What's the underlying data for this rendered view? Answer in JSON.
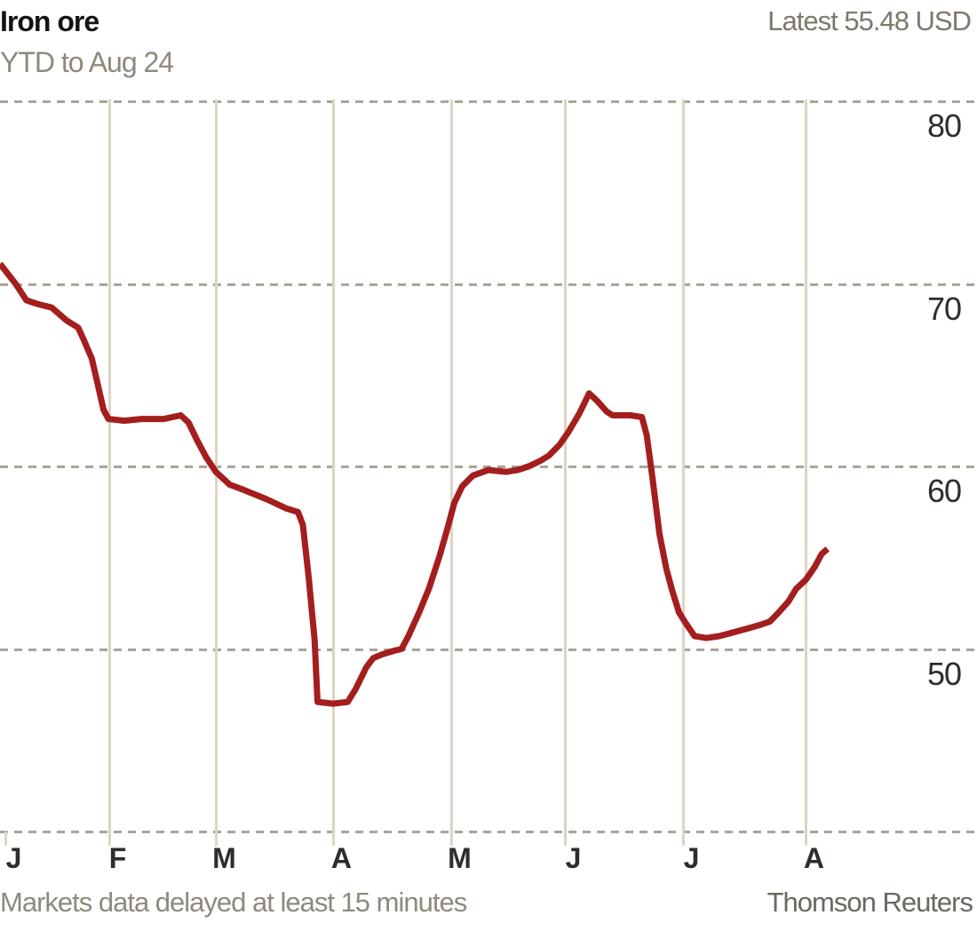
{
  "header": {
    "title": "Iron ore",
    "subtitle": "YTD to Aug 24",
    "latest": "Latest 55.48 USD"
  },
  "footer": {
    "disclaimer": "Markets data delayed at least 15 minutes",
    "source": "Thomson Reuters"
  },
  "colors": {
    "line": "#a41e1e",
    "grid_vertical": "#ddd4c3",
    "grid_dashed": "#aaa49a",
    "title_text": "#141414",
    "muted_text": "#8f897c",
    "axis_text": "#2f2d28"
  },
  "chart_data": {
    "type": "line",
    "title": "Iron ore",
    "subtitle": "YTD to Aug 24",
    "unit": "USD",
    "latest_value": 55.48,
    "period_end": "Aug 24",
    "ylim": [
      40,
      80
    ],
    "y_tick_labels": [
      80,
      70,
      60,
      50
    ],
    "y_gridlines": [
      80,
      70,
      60,
      50,
      40
    ],
    "grid": "on",
    "legend": "none",
    "x_months": [
      {
        "label": "J",
        "f": 0.0055,
        "full_line": false
      },
      {
        "label": "F",
        "f": 0.1118,
        "full_line": true
      },
      {
        "label": "M",
        "f": 0.2209,
        "full_line": true
      },
      {
        "label": "A",
        "f": 0.3409,
        "full_line": true
      },
      {
        "label": "M",
        "f": 0.4618,
        "full_line": true
      },
      {
        "label": "J",
        "f": 0.5782,
        "full_line": true
      },
      {
        "label": "J",
        "f": 0.6991,
        "full_line": true
      },
      {
        "label": "A",
        "f": 0.8245,
        "full_line": true
      }
    ],
    "series": [
      {
        "name": "Iron ore price (USD)",
        "points": [
          [
            0.0,
            71.1
          ],
          [
            0.016,
            70.0
          ],
          [
            0.027,
            69.1
          ],
          [
            0.038,
            68.9
          ],
          [
            0.053,
            68.7
          ],
          [
            0.068,
            68.0
          ],
          [
            0.08,
            67.6
          ],
          [
            0.086,
            66.9
          ],
          [
            0.094,
            65.9
          ],
          [
            0.1,
            64.5
          ],
          [
            0.106,
            63.1
          ],
          [
            0.111,
            62.6
          ],
          [
            0.127,
            62.5
          ],
          [
            0.145,
            62.6
          ],
          [
            0.168,
            62.6
          ],
          [
            0.185,
            62.8
          ],
          [
            0.193,
            62.4
          ],
          [
            0.202,
            61.4
          ],
          [
            0.211,
            60.5
          ],
          [
            0.221,
            59.7
          ],
          [
            0.235,
            59.0
          ],
          [
            0.25,
            58.7
          ],
          [
            0.273,
            58.2
          ],
          [
            0.293,
            57.7
          ],
          [
            0.305,
            57.5
          ],
          [
            0.31,
            56.8
          ],
          [
            0.316,
            53.9
          ],
          [
            0.322,
            50.5
          ],
          [
            0.325,
            47.1
          ],
          [
            0.341,
            47.0
          ],
          [
            0.356,
            47.1
          ],
          [
            0.364,
            47.8
          ],
          [
            0.375,
            49.0
          ],
          [
            0.382,
            49.5
          ],
          [
            0.391,
            49.7
          ],
          [
            0.403,
            49.9
          ],
          [
            0.411,
            50.0
          ],
          [
            0.418,
            50.7
          ],
          [
            0.429,
            52.0
          ],
          [
            0.439,
            53.3
          ],
          [
            0.45,
            55.1
          ],
          [
            0.459,
            56.8
          ],
          [
            0.465,
            58.0
          ],
          [
            0.473,
            58.9
          ],
          [
            0.484,
            59.5
          ],
          [
            0.5,
            59.8
          ],
          [
            0.518,
            59.7
          ],
          [
            0.53,
            59.8
          ],
          [
            0.541,
            60.0
          ],
          [
            0.553,
            60.3
          ],
          [
            0.562,
            60.6
          ],
          [
            0.573,
            61.2
          ],
          [
            0.582,
            61.9
          ],
          [
            0.593,
            62.9
          ],
          [
            0.603,
            64.0
          ],
          [
            0.611,
            63.6
          ],
          [
            0.621,
            63.0
          ],
          [
            0.627,
            62.8
          ],
          [
            0.645,
            62.8
          ],
          [
            0.657,
            62.7
          ],
          [
            0.662,
            61.7
          ],
          [
            0.668,
            59.3
          ],
          [
            0.675,
            56.3
          ],
          [
            0.682,
            54.4
          ],
          [
            0.688,
            53.2
          ],
          [
            0.695,
            52.0
          ],
          [
            0.702,
            51.4
          ],
          [
            0.711,
            50.7
          ],
          [
            0.723,
            50.6
          ],
          [
            0.736,
            50.7
          ],
          [
            0.75,
            50.9
          ],
          [
            0.764,
            51.1
          ],
          [
            0.777,
            51.3
          ],
          [
            0.788,
            51.5
          ],
          [
            0.797,
            52.0
          ],
          [
            0.807,
            52.6
          ],
          [
            0.815,
            53.3
          ],
          [
            0.825,
            53.8
          ],
          [
            0.834,
            54.5
          ],
          [
            0.841,
            55.2
          ],
          [
            0.847,
            55.48
          ]
        ]
      }
    ]
  }
}
